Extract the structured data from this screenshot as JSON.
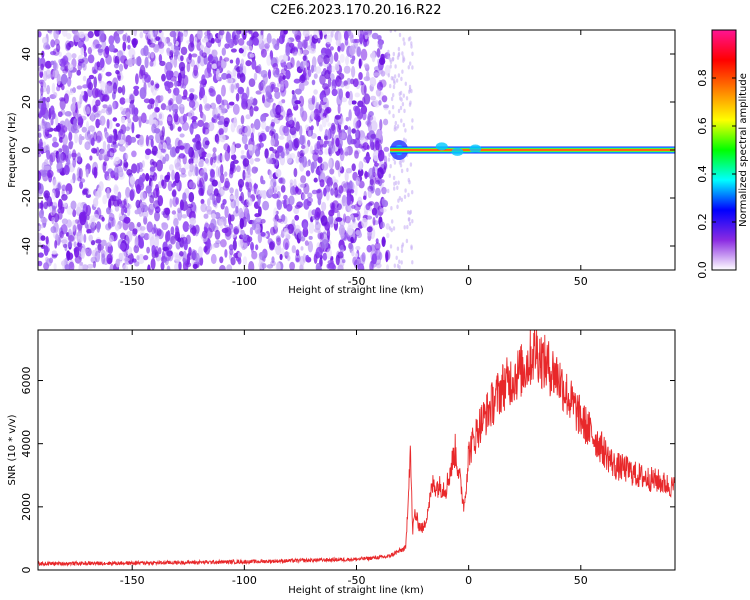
{
  "title": "C2E6.2023.170.20.16.R22",
  "chart_data": [
    {
      "type": "heatmap",
      "panel": "spectrum",
      "xlabel": "Height of straight line (km)",
      "ylabel": "Frequency (Hz)",
      "xlim": [
        -192,
        92
      ],
      "ylim": [
        -50,
        50
      ],
      "xticks": [
        -150,
        -100,
        -50,
        0,
        50
      ],
      "yticks": [
        -40,
        -20,
        0,
        20,
        40
      ],
      "noise_region": {
        "x": [
          -192,
          -36
        ],
        "y": [
          -50,
          50
        ],
        "level": "low (0.0-0.2)"
      },
      "transition_region": {
        "x": [
          -36,
          -25
        ],
        "note": "sparse noise and blue/cyan blob near 0 Hz"
      },
      "signal_line": {
        "x": [
          -35,
          92
        ],
        "frequency": 0,
        "amplitude": "high (0.8-1.0)"
      },
      "colorbar": {
        "label": "Normalized spectral amplitude",
        "range": [
          0,
          1
        ],
        "ticks": [
          "0.0",
          "0.2",
          "0.4",
          "0.6",
          "0.8"
        ],
        "colormap": [
          "#ffffff",
          "#8a2be2",
          "#0000ff",
          "#00ffff",
          "#00ff00",
          "#ffff00",
          "#ff8000",
          "#ff0000",
          "#ff1493"
        ]
      },
      "grid": false
    },
    {
      "type": "line",
      "panel": "snr",
      "xlabel": "Height of straight line (km)",
      "ylabel": "SNR (10 * v/v)",
      "xlim": [
        -192,
        92
      ],
      "ylim": [
        0,
        7600
      ],
      "xticks": [
        -150,
        -100,
        -50,
        0,
        50
      ],
      "yticks": [
        0,
        2000,
        4000,
        6000
      ],
      "series": [
        {
          "color": "#e8282a",
          "x": [
            -192,
            -150,
            -100,
            -50,
            -36,
            -28,
            -26,
            -25,
            -24,
            -22,
            -20,
            -16,
            -10,
            -6,
            -2,
            0,
            5,
            10,
            15,
            20,
            25,
            30,
            33,
            36,
            40,
            45,
            50,
            55,
            60,
            65,
            70,
            75,
            80,
            85,
            92
          ],
          "y": [
            200,
            220,
            260,
            340,
            420,
            700,
            3900,
            1200,
            1800,
            1400,
            1300,
            2700,
            2600,
            3800,
            2000,
            3700,
            4600,
            5200,
            5800,
            6100,
            6400,
            7000,
            6600,
            6400,
            6100,
            5400,
            4800,
            4300,
            3800,
            3300,
            3200,
            3000,
            2900,
            2800,
            2600
          ]
        }
      ],
      "grid": false
    }
  ]
}
